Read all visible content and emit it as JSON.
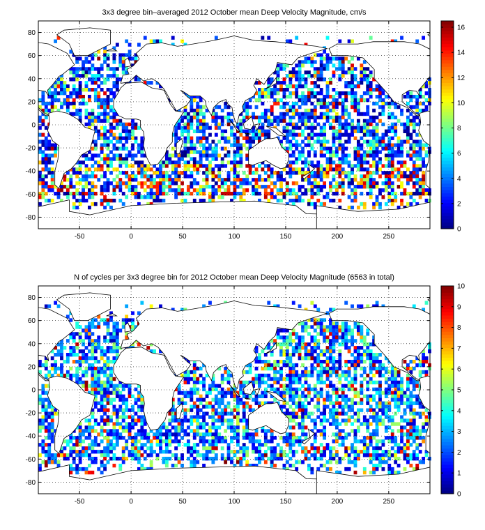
{
  "chart_data": [
    {
      "type": "heatmap",
      "title": "3x3 degree bin–averaged 2012 October mean Deep Velocity Magnitude, cm/s",
      "xlim": [
        -90,
        290
      ],
      "ylim": [
        -90,
        90
      ],
      "xticks": [
        -50,
        0,
        50,
        100,
        150,
        200,
        250
      ],
      "xtick_labels": [
        "-50",
        "0",
        "50",
        "100",
        "150",
        "200",
        "250"
      ],
      "yticks": [
        80,
        60,
        40,
        20,
        0,
        -20,
        -40,
        -60,
        -80
      ],
      "ytick_labels": [
        "80",
        "60",
        "40",
        "20",
        "0",
        "-20",
        "-40",
        "-60",
        "-80"
      ],
      "grid": true,
      "colorbar": {
        "min": 0,
        "max": 16.5,
        "ticks": [
          0,
          2,
          4,
          6,
          8,
          10,
          12,
          14,
          16
        ],
        "tick_labels": [
          "0",
          "2",
          "4",
          "6",
          "8",
          "10",
          "12",
          "14",
          "16"
        ]
      },
      "colormap": "jet",
      "bin_size_deg": 3
    },
    {
      "type": "heatmap",
      "title": "N of cycles per 3x3 degree bin for 2012 October mean Deep Velocity Magnitude (6563 in total)",
      "xlim": [
        -90,
        290
      ],
      "ylim": [
        -90,
        90
      ],
      "xticks": [
        -50,
        0,
        50,
        100,
        150,
        200,
        250
      ],
      "xtick_labels": [
        "-50",
        "0",
        "50",
        "100",
        "150",
        "200",
        "250"
      ],
      "yticks": [
        80,
        60,
        40,
        20,
        0,
        -20,
        -40,
        -60,
        -80
      ],
      "ytick_labels": [
        "80",
        "60",
        "40",
        "20",
        "0",
        "-20",
        "-40",
        "-60",
        "-80"
      ],
      "grid": true,
      "colorbar": {
        "min": 0,
        "max": 10,
        "ticks": [
          0,
          1,
          2,
          3,
          4,
          5,
          6,
          7,
          8,
          9,
          10
        ],
        "tick_labels": [
          "0",
          "1",
          "2",
          "3",
          "4",
          "5",
          "6",
          "7",
          "8",
          "9",
          "10"
        ]
      },
      "colormap": "jet",
      "bin_size_deg": 3
    }
  ]
}
